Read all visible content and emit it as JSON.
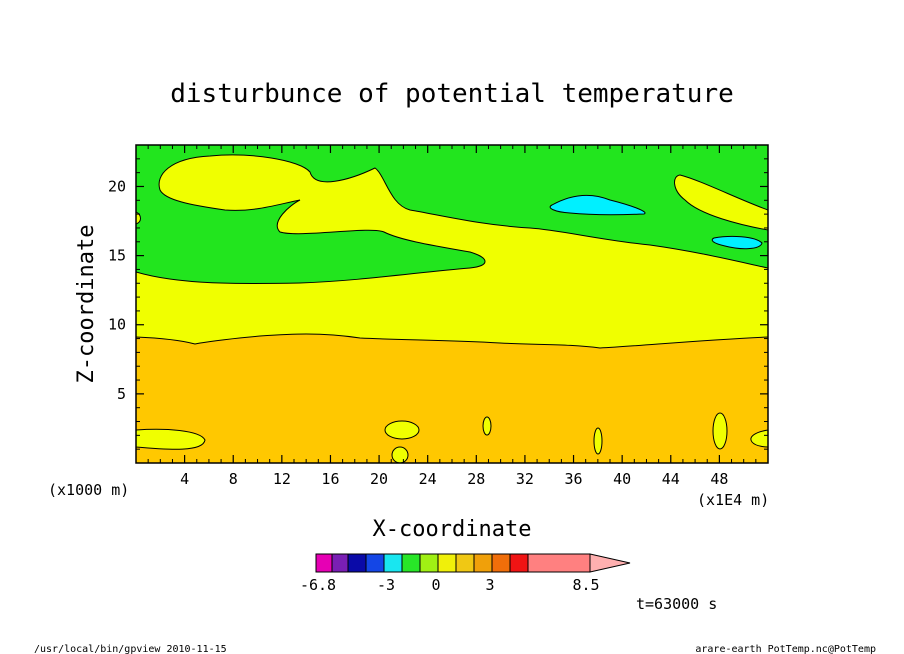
{
  "chart_data": {
    "type": "heatmap",
    "title": "disturbunce of potential temperature",
    "xlabel": "X-coordinate",
    "ylabel": "Z-coordinate",
    "x_unit_label": "(x1000 m)",
    "x_scale_label": "(x1E4 m)",
    "xlim": [
      0,
      52
    ],
    "ylim": [
      0,
      23
    ],
    "x_ticks": [
      4,
      8,
      12,
      16,
      20,
      24,
      28,
      32,
      36,
      40,
      44,
      48
    ],
    "y_ticks": [
      5,
      10,
      15,
      20
    ],
    "grid": false,
    "colorbar": {
      "colors": [
        "#e600b4",
        "#7a1fb4",
        "#0a0aa8",
        "#1446e6",
        "#19e6f0",
        "#28e628",
        "#a0f014",
        "#f0f00a",
        "#f0c814",
        "#f0a00a",
        "#f06e0a",
        "#f01414",
        "#ff8080",
        "#ffb0b0"
      ],
      "tick_labels": [
        "-6.8",
        "-3",
        "0",
        "3",
        "8.5"
      ]
    },
    "regions": [
      {
        "level": "2.5",
        "color": "#ffc800",
        "note": "z 0-9"
      },
      {
        "level": "2",
        "color": "#f0ff00",
        "note": "z 9-14"
      },
      {
        "level": "1.5",
        "color": "#22e51e",
        "note": "z 14-23"
      },
      {
        "level": "1",
        "color": "#00f0ff",
        "note": "small pockets near z 16-19"
      }
    ]
  },
  "annotations": {
    "time": "t=63000 s",
    "footer_left": "/usr/local/bin/gpview  2010-11-15",
    "footer_right": "arare-earth_PotTemp.nc@PotTemp"
  }
}
